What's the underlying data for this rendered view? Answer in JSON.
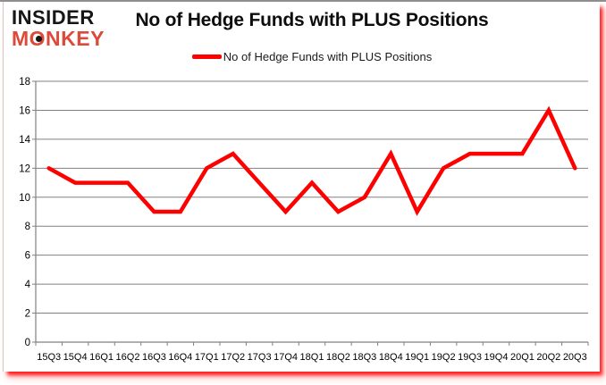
{
  "logo": {
    "line1": "INSIDER",
    "line2": "MONKEY",
    "color_primary": "#161616",
    "color_accent": "#dd4a3a"
  },
  "title": "No of Hedge Funds with PLUS Positions",
  "legend": {
    "label": "No of Hedge Funds with PLUS Positions",
    "marker_color": "#ff0000"
  },
  "chart_data": {
    "type": "line",
    "title": "No of Hedge Funds with PLUS Positions",
    "categories": [
      "15Q3",
      "15Q4",
      "16Q1",
      "16Q2",
      "16Q3",
      "16Q4",
      "17Q1",
      "17Q2",
      "17Q3",
      "17Q4",
      "18Q1",
      "18Q2",
      "18Q3",
      "18Q4",
      "19Q1",
      "19Q2",
      "19Q3",
      "19Q4",
      "20Q1",
      "20Q2",
      "20Q3"
    ],
    "series": [
      {
        "name": "No of Hedge Funds with PLUS Positions",
        "color": "#ff0000",
        "values": [
          12,
          11,
          11,
          11,
          9,
          9,
          12,
          13,
          11,
          9,
          11,
          9,
          10,
          13,
          9,
          12,
          13,
          13,
          13,
          16,
          12
        ]
      }
    ],
    "xlabel": "",
    "ylabel": "",
    "ylim": [
      0,
      18
    ],
    "yticks": [
      0,
      2,
      4,
      6,
      8,
      10,
      12,
      14,
      16,
      18
    ],
    "grid": true,
    "gridline_color": "#808080",
    "axis_color": "#808080",
    "tick_label_color": "#000000",
    "legend_position": "top-center"
  }
}
